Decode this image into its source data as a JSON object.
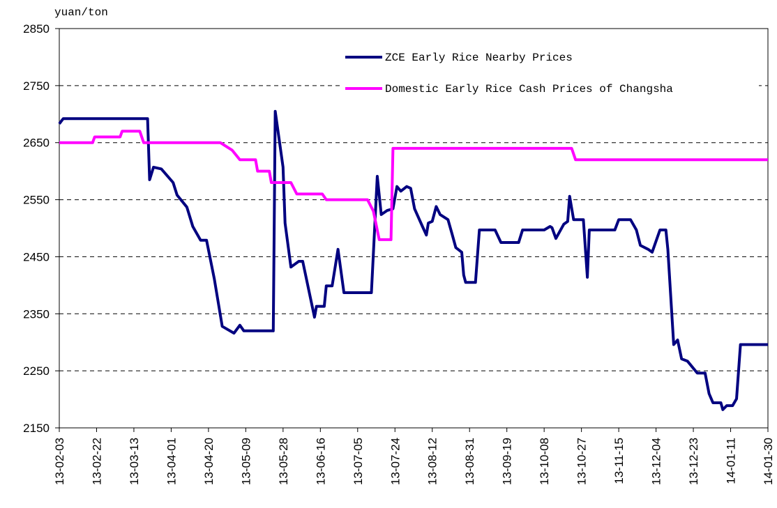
{
  "chart_data": {
    "type": "line",
    "y_label": "yuan/ton",
    "xlim": [
      "13-02-03",
      "14-01-30"
    ],
    "xticks": [
      "13-02-03",
      "13-02-22",
      "13-03-13",
      "13-04-01",
      "13-04-20",
      "13-05-09",
      "13-05-28",
      "13-06-16",
      "13-07-05",
      "13-07-24",
      "13-08-12",
      "13-08-31",
      "13-09-19",
      "13-10-08",
      "13-10-27",
      "13-11-15",
      "13-12-04",
      "13-12-23",
      "14-01-11",
      "14-01-30"
    ],
    "ylim": [
      2150,
      2850
    ],
    "yticks": [
      2150,
      2250,
      2350,
      2450,
      2550,
      2650,
      2750,
      2850
    ],
    "grid": true,
    "series": [
      {
        "name": "ZCE Early Rice Nearby Prices",
        "color": "#000080",
        "x": [
          "13-02-03",
          "13-02-05",
          "13-03-20",
          "13-03-21",
          "13-03-23",
          "13-03-27",
          "13-04-02",
          "13-04-04",
          "13-04-09",
          "13-04-12",
          "13-04-16",
          "13-04-19",
          "13-04-23",
          "13-04-27",
          "13-05-03",
          "13-05-06",
          "13-05-08",
          "13-05-23",
          "13-05-24",
          "13-05-28",
          "13-05-29",
          "13-06-01",
          "13-06-05",
          "13-06-07",
          "13-06-13",
          "13-06-14",
          "13-06-18",
          "13-06-19",
          "13-06-22",
          "13-06-25",
          "13-06-28",
          "13-07-12",
          "13-07-15",
          "13-07-17",
          "13-07-20",
          "13-07-23",
          "13-07-25",
          "13-07-27",
          "13-07-30",
          "13-08-01",
          "13-08-03",
          "13-08-07",
          "13-08-09",
          "13-08-10",
          "13-08-12",
          "13-08-14",
          "13-08-16",
          "13-08-20",
          "13-08-22",
          "13-08-24",
          "13-08-27",
          "13-08-28",
          "13-08-29",
          "13-09-03",
          "13-09-05",
          "13-09-13",
          "13-09-16",
          "13-09-25",
          "13-09-27",
          "13-10-08",
          "13-10-11",
          "13-10-12",
          "13-10-14",
          "13-10-18",
          "13-10-20",
          "13-10-21",
          "13-10-23",
          "13-10-28",
          "13-10-30",
          "13-10-31",
          "13-11-13",
          "13-11-15",
          "13-11-21",
          "13-11-24",
          "13-11-26",
          "13-11-30",
          "13-12-02",
          "13-12-06",
          "13-12-09",
          "13-12-10",
          "13-12-13",
          "13-12-15",
          "13-12-17",
          "13-12-20",
          "13-12-25",
          "13-12-29",
          "13-12-31",
          "14-01-02",
          "14-01-06",
          "14-01-07",
          "14-01-09",
          "14-01-12",
          "14-01-14",
          "14-01-16",
          "14-01-30"
        ],
        "values": [
          2683,
          2692,
          2692,
          2585,
          2607,
          2604,
          2580,
          2558,
          2537,
          2503,
          2479,
          2479,
          2411,
          2328,
          2316,
          2330,
          2320,
          2320,
          2705,
          2607,
          2509,
          2432,
          2442,
          2442,
          2344,
          2363,
          2363,
          2399,
          2399,
          2463,
          2387,
          2387,
          2591,
          2524,
          2531,
          2534,
          2573,
          2565,
          2573,
          2570,
          2534,
          2503,
          2488,
          2509,
          2512,
          2538,
          2524,
          2515,
          2491,
          2466,
          2458,
          2418,
          2405,
          2405,
          2497,
          2497,
          2475,
          2475,
          2497,
          2497,
          2503,
          2501,
          2482,
          2507,
          2512,
          2556,
          2515,
          2515,
          2414,
          2497,
          2497,
          2515,
          2515,
          2497,
          2470,
          2463,
          2458,
          2497,
          2497,
          2463,
          2296,
          2304,
          2271,
          2267,
          2246,
          2246,
          2210,
          2194,
          2194,
          2182,
          2189,
          2189,
          2201,
          2296,
          2296
        ]
      },
      {
        "name": "Domestic Early Rice Cash Prices of Changsha",
        "color": "#ff00ff",
        "x": [
          "13-02-03",
          "13-02-20",
          "13-02-21",
          "13-03-06",
          "13-03-07",
          "13-03-16",
          "13-03-18",
          "13-04-26",
          "13-05-02",
          "13-05-06",
          "13-05-14",
          "13-05-15",
          "13-05-21",
          "13-05-22",
          "13-06-01",
          "13-06-04",
          "13-06-17",
          "13-06-19",
          "13-07-10",
          "13-07-13",
          "13-07-16",
          "13-07-22",
          "13-07-23",
          "13-10-22",
          "13-10-24",
          "14-01-30"
        ],
        "values": [
          2650,
          2650,
          2660,
          2660,
          2670,
          2670,
          2650,
          2650,
          2637,
          2620,
          2620,
          2600,
          2600,
          2580,
          2580,
          2560,
          2560,
          2550,
          2550,
          2530,
          2480,
          2480,
          2640,
          2640,
          2620,
          2620
        ]
      }
    ]
  }
}
